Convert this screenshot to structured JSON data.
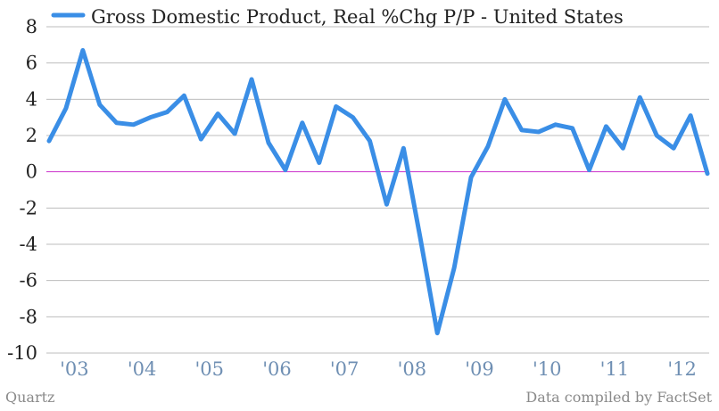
{
  "chart_data": {
    "type": "line",
    "title": "",
    "xlabel": "",
    "ylabel": "",
    "ylim": [
      -10,
      8
    ],
    "y_ticks": [
      "8",
      "6",
      "4",
      "2",
      "0",
      "-2",
      "-4",
      "-6",
      "-8",
      "-10"
    ],
    "x_ticks": [
      "'03",
      "'04",
      "'05",
      "'06",
      "'07",
      "'08",
      "'09",
      "'10",
      "'11",
      "'12"
    ],
    "grid": true,
    "legend_position": "top-left",
    "series": [
      {
        "name": "Gross Domestic Product, Real %Chg P/P - United States",
        "color": "#3a8ee6",
        "x": [
          "2003 Q1",
          "2003 Q2",
          "2003 Q3",
          "2003 Q4",
          "2004 Q1",
          "2004 Q2",
          "2004 Q3",
          "2004 Q4",
          "2005 Q1",
          "2005 Q2",
          "2005 Q3",
          "2005 Q4",
          "2006 Q1",
          "2006 Q2",
          "2006 Q3",
          "2006 Q4",
          "2007 Q1",
          "2007 Q2",
          "2007 Q3",
          "2007 Q4",
          "2008 Q1",
          "2008 Q2",
          "2008 Q3",
          "2008 Q4",
          "2009 Q1",
          "2009 Q2",
          "2009 Q3",
          "2009 Q4",
          "2010 Q1",
          "2010 Q2",
          "2010 Q3",
          "2010 Q4",
          "2011 Q1",
          "2011 Q2",
          "2011 Q3",
          "2011 Q4",
          "2012 Q1",
          "2012 Q2",
          "2012 Q3",
          "2012 Q4"
        ],
        "values": [
          1.7,
          3.5,
          6.7,
          3.7,
          2.7,
          2.6,
          3.0,
          3.3,
          4.2,
          1.8,
          3.2,
          2.1,
          5.1,
          1.6,
          0.1,
          2.7,
          0.5,
          3.6,
          3.0,
          1.7,
          -1.8,
          1.3,
          -3.7,
          -8.9,
          -5.3,
          -0.3,
          1.4,
          4.0,
          2.3,
          2.2,
          2.6,
          2.4,
          0.1,
          2.5,
          1.3,
          4.1,
          2.0,
          1.3,
          3.1,
          -0.1
        ]
      }
    ],
    "zero_line_color": "#cc33cc"
  },
  "footer": {
    "source_left": "Quartz",
    "source_right": "Data compiled by FactSet"
  }
}
